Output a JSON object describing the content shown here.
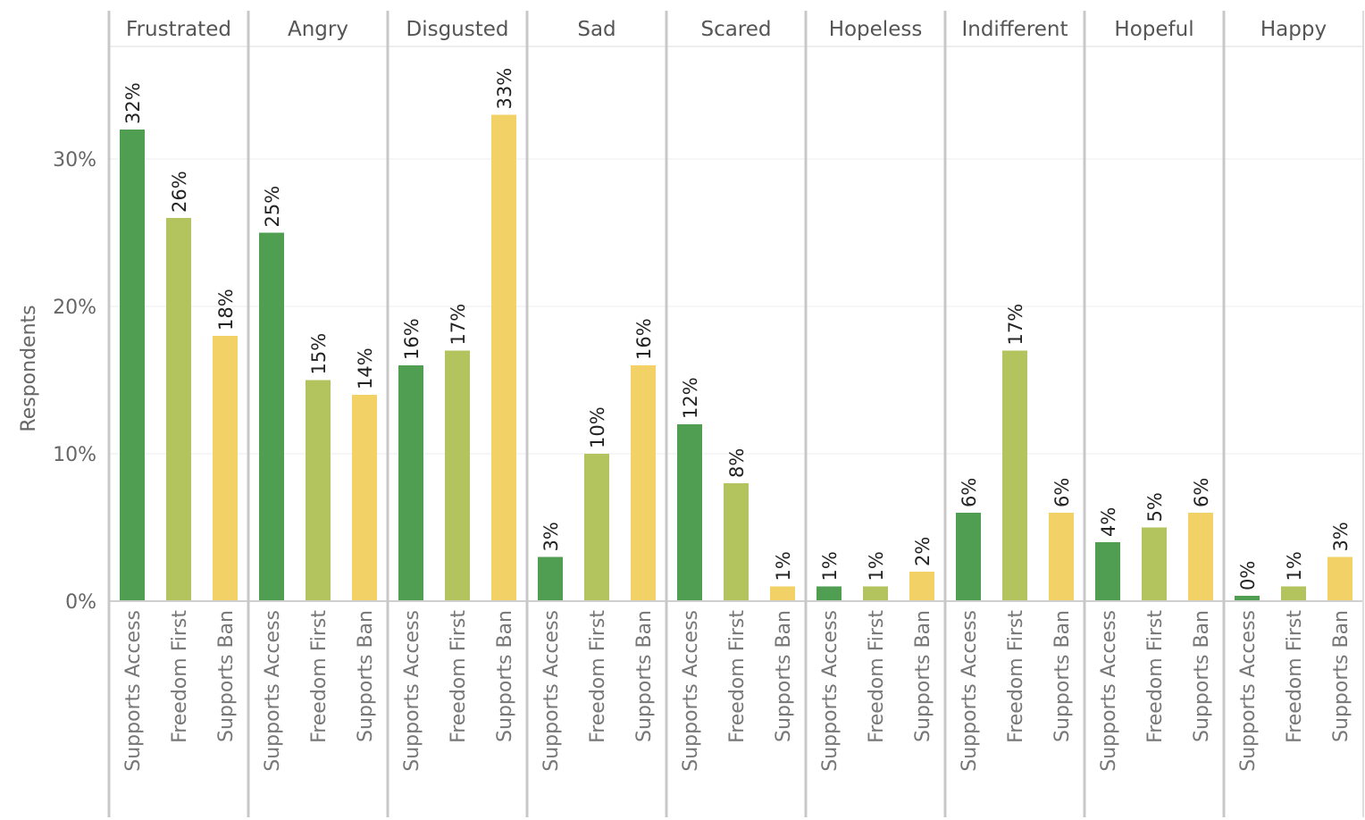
{
  "chart_data": {
    "type": "bar",
    "ylabel": "Respondents",
    "ylim": [
      0,
      38
    ],
    "yticks": [
      0,
      10,
      20,
      30
    ],
    "ytick_labels": [
      "0%",
      "10%",
      "20%",
      "30%"
    ],
    "grid": true,
    "panels": [
      "Frustrated",
      "Angry",
      "Disgusted",
      "Sad",
      "Scared",
      "Hopeless",
      "Indifferent",
      "Hopeful",
      "Happy"
    ],
    "categories": [
      "Supports Access",
      "Freedom First",
      "Supports Ban"
    ],
    "colors": [
      "#4f9e52",
      "#b3c35d",
      "#f2d166"
    ],
    "values": [
      [
        32,
        26,
        18
      ],
      [
        25,
        15,
        14
      ],
      [
        16,
        17,
        33
      ],
      [
        3,
        10,
        16
      ],
      [
        12,
        8,
        1
      ],
      [
        1,
        1,
        2
      ],
      [
        6,
        17,
        6
      ],
      [
        4,
        5,
        6
      ],
      [
        0,
        1,
        3
      ]
    ],
    "value_labels": [
      [
        "32%",
        "26%",
        "18%"
      ],
      [
        "25%",
        "15%",
        "14%"
      ],
      [
        "16%",
        "17%",
        "33%"
      ],
      [
        "3%",
        "10%",
        "16%"
      ],
      [
        "12%",
        "8%",
        "1%"
      ],
      [
        "1%",
        "1%",
        "2%"
      ],
      [
        "6%",
        "17%",
        "6%"
      ],
      [
        "4%",
        "5%",
        "6%"
      ],
      [
        "0%",
        "1%",
        "3%"
      ]
    ]
  }
}
